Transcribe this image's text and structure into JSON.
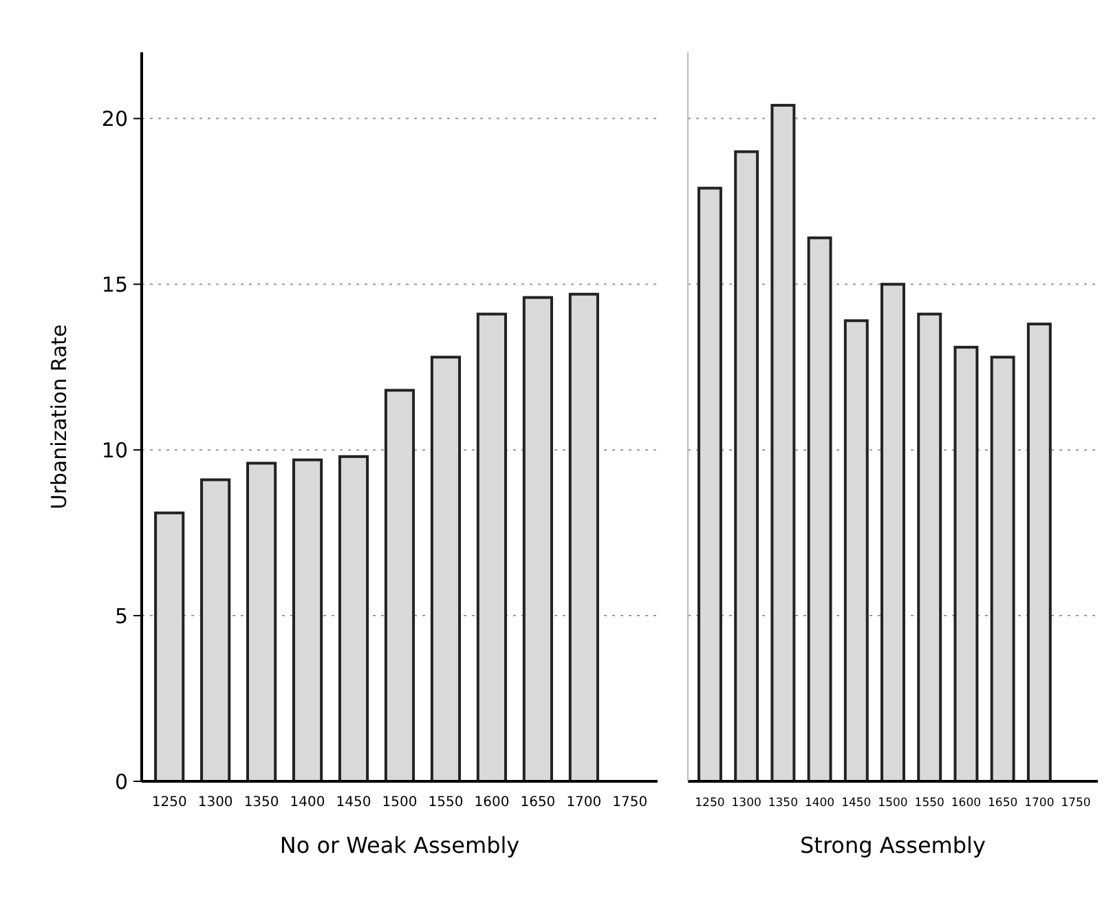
{
  "chart_data": [
    {
      "type": "bar",
      "ylabel": "Urbanization Rate",
      "xlabel": "No or Weak Assembly",
      "categories": [
        "1250",
        "1300",
        "1350",
        "1400",
        "1450",
        "1500",
        "1550",
        "1600",
        "1650",
        "1700",
        "1750"
      ],
      "values": [
        8.1,
        9.1,
        9.6,
        9.7,
        9.8,
        11.8,
        12.8,
        14.1,
        14.6,
        14.7,
        null
      ],
      "color": "#d9d9d9",
      "ylim": [
        0,
        22
      ],
      "yticks": [
        0,
        5,
        10,
        15,
        20
      ],
      "grid": "y"
    },
    {
      "type": "bar",
      "xlabel": "Strong Assembly",
      "categories": [
        "1250",
        "1300",
        "1350",
        "1400",
        "1450",
        "1500",
        "1550",
        "1600",
        "1650",
        "1700",
        "1750"
      ],
      "values": [
        17.9,
        19.0,
        20.4,
        16.4,
        13.9,
        15.0,
        14.1,
        13.1,
        12.8,
        13.8,
        null
      ],
      "color": "#d9d9d9",
      "ylim": [
        0,
        22
      ],
      "yticks": [
        0,
        5,
        10,
        15,
        20
      ],
      "grid": "y",
      "tick_labels": "x"
    }
  ]
}
